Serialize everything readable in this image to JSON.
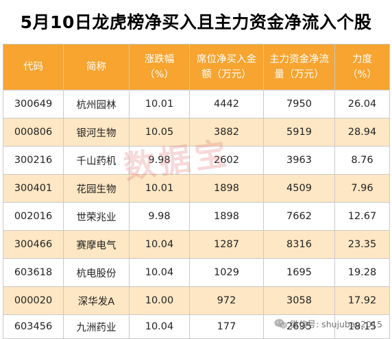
{
  "title": "5月10日龙虎榜净买入且主力资金净流入个股",
  "columns": {
    "code": "代码",
    "name": "简称",
    "change_l1": "涨跌幅",
    "change_l2": "（%）",
    "seat_l1": "席位净买入金",
    "seat_l2": "额（万元）",
    "flow_l1": "主力资金净流",
    "flow_l2": "量（万元）",
    "strength_l1": "力度",
    "strength_l2": "（%）"
  },
  "rows": [
    {
      "code": "300649",
      "name": "杭州园林",
      "change": "10.01",
      "seat": "4442",
      "flow": "7950",
      "strength": "26.04"
    },
    {
      "code": "000806",
      "name": "银河生物",
      "change": "10.05",
      "seat": "3882",
      "flow": "5919",
      "strength": "28.94"
    },
    {
      "code": "300216",
      "name": "千山药机",
      "change": "9.98",
      "seat": "2602",
      "flow": "3963",
      "strength": "8.76"
    },
    {
      "code": "300401",
      "name": "花园生物",
      "change": "10.01",
      "seat": "1898",
      "flow": "4509",
      "strength": "7.96"
    },
    {
      "code": "002016",
      "name": "世荣兆业",
      "change": "9.98",
      "seat": "1898",
      "flow": "7662",
      "strength": "12.67"
    },
    {
      "code": "300466",
      "name": "赛摩电气",
      "change": "10.04",
      "seat": "1287",
      "flow": "8316",
      "strength": "23.35"
    },
    {
      "code": "603618",
      "name": "杭电股份",
      "change": "10.04",
      "seat": "1029",
      "flow": "1695",
      "strength": "19.28"
    },
    {
      "code": "000020",
      "name": "深华发A",
      "change": "10.00",
      "seat": "972",
      "flow": "3058",
      "strength": "17.92"
    },
    {
      "code": "603456",
      "name": "九洲药业",
      "change": "10.04",
      "seat": "177",
      "flow": "2695",
      "strength": "18.15"
    }
  ],
  "watermark": "数据宝",
  "wechat_label": "微信号: shujubao2015",
  "colors": {
    "header": "#f7a430",
    "stripe": "#fde7c4"
  },
  "icons": {
    "wechat": "wechat-icon"
  }
}
